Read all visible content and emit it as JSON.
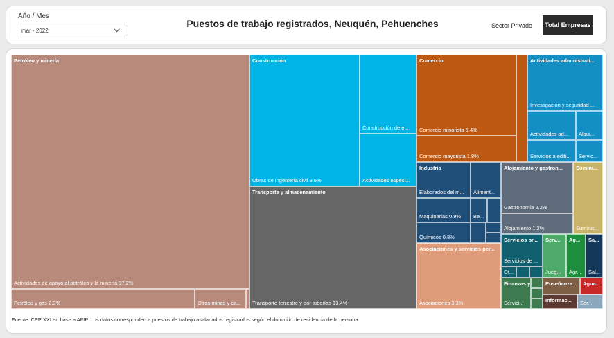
{
  "filter": {
    "label": "Año / Mes",
    "value": "mar - 2022"
  },
  "title": "Puestos de trabajo registrados, Neuquén, Pehuenches",
  "buttons": {
    "sector": "Sector Privado",
    "total": "Total Empresas"
  },
  "colors": {
    "accent_dark": "#2b2b2b",
    "petroleo": "#b88a7b",
    "construccion": "#00b5e5",
    "transporte": "#666666",
    "comercio": "#bd5812",
    "administrativas": "#148fc3",
    "industria": "#1f4e79",
    "alojamiento": "#5e6b7a",
    "suministro": "#c9b36b",
    "asociaciones": "#df9c7a"
  },
  "treemap": {
    "petroleo": {
      "label": "Petróleo y minería",
      "apoyo": "Actividades de apoyo al petróleo y la minería 37.2%",
      "gas": "Petróleo y gas 2.3%",
      "otras": "Otras minas y ca..."
    },
    "construccion": {
      "label": "Construcción",
      "obras": "Obras de ingeniería civil 9.6%",
      "edificios": "Construcción de e...",
      "especializadas": "Actividades especi..."
    },
    "transporte": {
      "label": "Transporte y almacenamiento",
      "terrestre": "Transporte terrestre y por tuberías 13.4%"
    },
    "comercio": {
      "label": "Comercio",
      "minorista": "Comercio minorista 5.4%",
      "mayorista": "Comercio mayorista 1.8%"
    },
    "administrativas": {
      "label": "Actividades administrati...",
      "investigacion": "Investigación y seguridad ...",
      "actividades": "Actividades ad...",
      "alquiler": "Alqui...",
      "servicios_edificios": "Servicios a edifi...",
      "servicios": "Servic..."
    },
    "industria": {
      "label": "Industria",
      "elaborados": "Elaborados del m...",
      "alimentos": "Aliment...",
      "maquinarias": "Maquinarias 0.9%",
      "bebidas": "Be...",
      "quimicos": "Químicos 0.8%"
    },
    "alojamiento": {
      "label": "Alojamiento y gastron...",
      "gastronomia": "Gastronomía 2.2%",
      "alojamiento": "Alojamiento 1.2%"
    },
    "suministro": {
      "label": "Sumini...",
      "sub": "Suminis..."
    },
    "asociaciones": {
      "label": "Asociaciones y servicios per...",
      "sub": "Asociaciones 3.3%"
    },
    "servicios_profesionales": {
      "label": "Servicios pr...",
      "sub": "Servicios de ...",
      "otros": "Ot..."
    },
    "servicios_artisticos": {
      "label": "Serv...",
      "sub": "Jueg..."
    },
    "agro": {
      "label": "Ag...",
      "sub": "Agr..."
    },
    "salud": {
      "label": "Sa...",
      "sub": "Sal..."
    },
    "finanzas": {
      "label": "Finanzas y s...",
      "sub": "Servici..."
    },
    "ensenanza": {
      "label": "Enseñanza"
    },
    "agua": {
      "label": "Agua..."
    },
    "informacion": {
      "label": "Informac..."
    },
    "servicios_otros": {
      "label": "Ser..."
    }
  },
  "footnote": "Fuente: CEP XXI en base a AFIP. Los datos corresponden a puestos de trabajo asalariados registrados según el domicilio de residencia de la persona."
}
